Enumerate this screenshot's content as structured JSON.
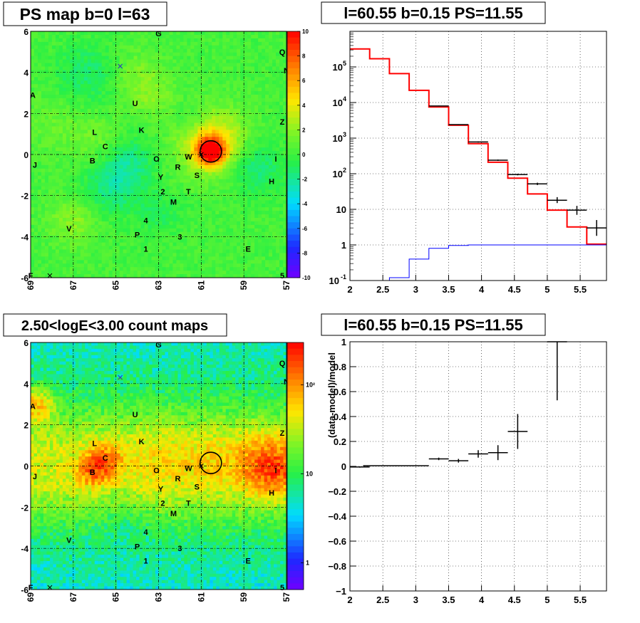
{
  "panels": {
    "ps_map": {
      "title": "PS map b=0 l=63",
      "x_ticks": [
        "69",
        "67",
        "65",
        "63",
        "61",
        "59",
        "57"
      ],
      "y_ticks": [
        "6",
        "4",
        "2",
        "0",
        "-2",
        "-4",
        "-6"
      ],
      "colorbar_ticks": [
        "10",
        "8",
        "6",
        "4",
        "2",
        "0",
        "-2",
        "-4",
        "-6",
        "-8",
        "-10"
      ],
      "labels": [
        {
          "t": "G",
          "l": 63.0,
          "b": 5.9
        },
        {
          "t": "Q",
          "l": 57.2,
          "b": 5.0
        },
        {
          "t": "N",
          "l": 57.0,
          "b": 4.1
        },
        {
          "t": "A",
          "l": 68.9,
          "b": 2.9
        },
        {
          "t": "U",
          "l": 64.1,
          "b": 2.5
        },
        {
          "t": "Z",
          "l": 57.2,
          "b": 1.6
        },
        {
          "t": "L",
          "l": 66.0,
          "b": 1.1
        },
        {
          "t": "K",
          "l": 63.8,
          "b": 1.2
        },
        {
          "t": "C",
          "l": 65.5,
          "b": 0.4
        },
        {
          "t": "O",
          "l": 63.1,
          "b": -0.2
        },
        {
          "t": "W",
          "l": 61.6,
          "b": -0.1
        },
        {
          "t": "B",
          "l": 66.1,
          "b": -0.3
        },
        {
          "t": "I",
          "l": 57.5,
          "b": -0.2
        },
        {
          "t": "R",
          "l": 62.1,
          "b": -0.6
        },
        {
          "t": "J",
          "l": 68.8,
          "b": -0.5
        },
        {
          "t": "S",
          "l": 61.2,
          "b": -1.0
        },
        {
          "t": "Y",
          "l": 62.9,
          "b": -1.1
        },
        {
          "t": "H",
          "l": 57.7,
          "b": -1.3
        },
        {
          "t": "2",
          "l": 62.8,
          "b": -1.8
        },
        {
          "t": "T",
          "l": 61.6,
          "b": -1.8
        },
        {
          "t": "M",
          "l": 62.3,
          "b": -2.3
        },
        {
          "t": "4",
          "l": 63.6,
          "b": -3.2
        },
        {
          "t": "V",
          "l": 67.2,
          "b": -3.6
        },
        {
          "t": "P",
          "l": 64.0,
          "b": -3.9
        },
        {
          "t": "3",
          "l": 62.0,
          "b": -4.0
        },
        {
          "t": "1",
          "l": 63.6,
          "b": -4.6
        },
        {
          "t": "E",
          "l": 58.8,
          "b": -4.6
        },
        {
          "t": "F",
          "l": 69.0,
          "b": -5.9
        },
        {
          "t": "5",
          "l": 57.2,
          "b": -5.9
        }
      ]
    },
    "count_map": {
      "title": "2.50<logE<3.00 count maps",
      "x_ticks": [
        "69",
        "67",
        "65",
        "63",
        "61",
        "59",
        "57"
      ],
      "y_ticks": [
        "6",
        "4",
        "2",
        "0",
        "-2",
        "-4",
        "-6"
      ],
      "colorbar_ticks": [
        "10²",
        "10",
        "1"
      ]
    },
    "spectrum": {
      "title": "l=60.55 b=0.15 PS=11.55"
    },
    "residual": {
      "title": "l=60.55 b=0.15 PS=11.55"
    }
  },
  "chart_data": [
    {
      "type": "heatmap",
      "title": "PS map b=0 l=63",
      "xlabel": "",
      "ylabel": "",
      "xlim": [
        69,
        57
      ],
      "ylim": [
        -6,
        6
      ],
      "zlim": [
        -10,
        10
      ],
      "source": {
        "l": 60.55,
        "b": 0.15
      },
      "markers_x": [
        {
          "l": 64.8,
          "b": 4.3
        },
        {
          "l": 68.1,
          "b": -5.9
        },
        {
          "l": 61.0,
          "b": 0.0
        }
      ]
    },
    {
      "type": "heatmap",
      "title": "2.50<logE<3.00 count maps",
      "xlabel": "",
      "ylabel": "",
      "xlim": [
        69,
        57
      ],
      "ylim": [
        -6,
        6
      ],
      "scale": "log",
      "zlim": [
        0.5,
        300
      ]
    },
    {
      "type": "line",
      "title": "l=60.55 b=0.15 PS=11.55",
      "xlabel": "",
      "ylabel": "",
      "xlim": [
        2,
        5.9
      ],
      "ylim": [
        0.1,
        1000000
      ],
      "yscale": "log",
      "series": [
        {
          "color": "#ff0000",
          "step": true,
          "x": [
            2.0,
            2.3,
            2.6,
            2.9,
            3.2,
            3.5,
            3.8,
            4.1,
            4.4,
            4.7,
            5.0,
            5.3,
            5.6,
            5.9
          ],
          "values": [
            320000,
            170000,
            65000,
            22000,
            7500,
            2300,
            700,
            210,
            75,
            27,
            9.5,
            3.2,
            1.05,
            1.05
          ]
        },
        {
          "color": "#0000ff",
          "step": true,
          "x": [
            2.0,
            2.3,
            2.6,
            2.9,
            3.2,
            3.5,
            3.8,
            4.1,
            4.4,
            4.7,
            5.0,
            5.3,
            5.6,
            5.9
          ],
          "values": [
            0.1,
            0.1,
            0.12,
            0.4,
            0.8,
            0.97,
            1.0,
            1.0,
            1.0,
            1.0,
            1.0,
            1.0,
            1.0,
            1.0
          ]
        },
        {
          "color": "#000000",
          "errorbars": true,
          "x": [
            3.35,
            3.65,
            3.95,
            4.25,
            4.55,
            4.85,
            5.15,
            5.45,
            5.75
          ],
          "values": [
            8000,
            2400,
            780,
            240,
            95,
            52,
            18,
            9.5,
            3
          ],
          "err_low": [
            7800,
            2340,
            750,
            230,
            90,
            48,
            15,
            7,
            1.8
          ],
          "err_high": [
            8200,
            2460,
            810,
            250,
            100,
            56,
            22,
            12.5,
            5
          ]
        }
      ]
    },
    {
      "type": "scatter",
      "title": "l=60.55 b=0.15 PS=11.55",
      "xlabel": "",
      "ylabel": "(data-model)/model",
      "xlim": [
        2,
        5.9
      ],
      "ylim": [
        -1,
        1
      ],
      "series": [
        {
          "color": "#000000",
          "errorbars": true,
          "points": [
            {
              "x": 2.15,
              "xerr": 0.15,
              "y": -0.005,
              "ylow": -0.01,
              "yhigh": 0.0
            },
            {
              "x": 2.7,
              "xerr": 0.5,
              "y": 0.005,
              "ylow": 0.002,
              "yhigh": 0.008
            },
            {
              "x": 3.35,
              "xerr": 0.15,
              "y": 0.06,
              "ylow": 0.05,
              "yhigh": 0.07
            },
            {
              "x": 3.65,
              "xerr": 0.15,
              "y": 0.045,
              "ylow": 0.03,
              "yhigh": 0.06
            },
            {
              "x": 3.95,
              "xerr": 0.15,
              "y": 0.1,
              "ylow": 0.07,
              "yhigh": 0.13
            },
            {
              "x": 4.25,
              "xerr": 0.15,
              "y": 0.11,
              "ylow": 0.05,
              "yhigh": 0.17
            },
            {
              "x": 4.55,
              "xerr": 0.15,
              "y": 0.28,
              "ylow": 0.14,
              "yhigh": 0.42
            },
            {
              "x": 5.15,
              "xerr": 0.15,
              "y": 1.0,
              "ylow": 0.53,
              "yhigh": 1.0
            }
          ]
        }
      ]
    }
  ]
}
